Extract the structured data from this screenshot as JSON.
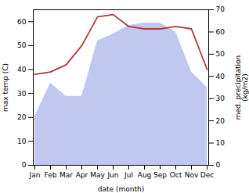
{
  "chart_data": {
    "type": "line",
    "categories": [
      "Jan",
      "Feb",
      "Mar",
      "Apr",
      "May",
      "Jun",
      "Jul",
      "Aug",
      "Sep",
      "Oct",
      "Nov",
      "Dec"
    ],
    "series": [
      {
        "type": "area",
        "axis": "y2",
        "color": "#c0c8f0",
        "values": [
          22,
          37,
          31,
          31,
          56,
          59,
          63,
          64,
          64,
          60,
          42,
          35
        ]
      },
      {
        "type": "line",
        "color": "#b03a3a",
        "values": [
          38,
          39,
          42,
          50,
          62,
          63,
          58,
          57,
          57,
          58,
          57,
          40
        ]
      }
    ],
    "xlabel": "date (month)",
    "ylabel": "max temp (C)",
    "y2label": "med. precipitation\n(kg/m2)",
    "ylim": [
      0,
      65
    ],
    "yticks": [
      0,
      10,
      20,
      30,
      40,
      50,
      60
    ],
    "y2lim": [
      0,
      70
    ],
    "y2ticks": [
      0,
      10,
      20,
      30,
      40,
      50,
      60,
      70
    ],
    "grid": false
  }
}
